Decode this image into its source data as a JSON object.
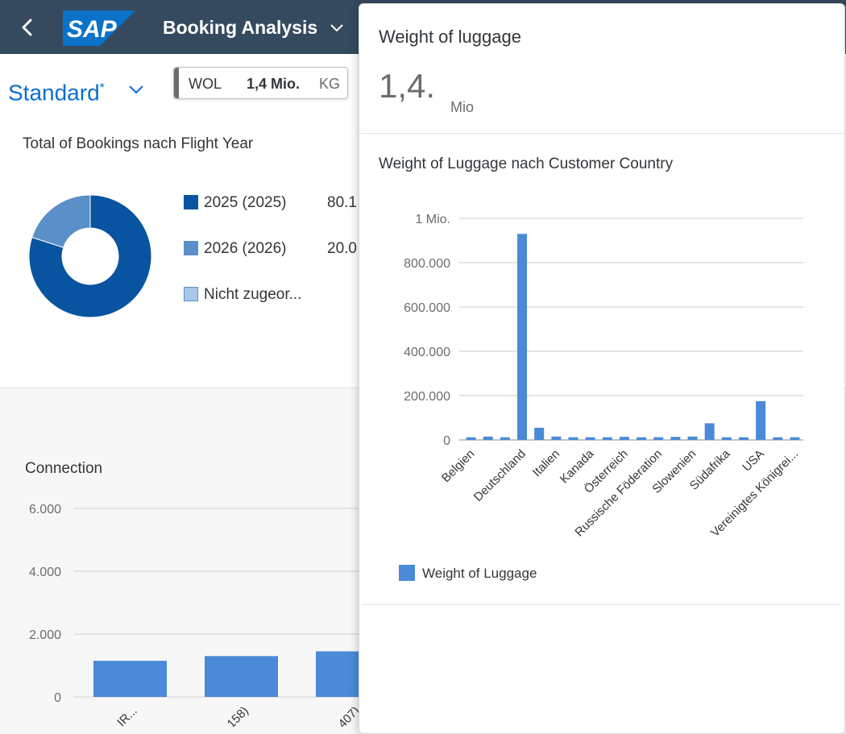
{
  "shell": {
    "app_title": "Booking Analysis",
    "logo_text": "SAP",
    "back_icon": "chevron-left-icon",
    "title_menu_icon": "chevron-down-icon",
    "color": "#354a5f"
  },
  "header": {
    "variant_label": "Standard",
    "variant_modified": "*",
    "kpi": {
      "label": "WOL",
      "value": "1,4 Mio.",
      "unit": "KG"
    },
    "donut_card": {
      "title": "Total of Bookings nach Flight Year",
      "legend": [
        {
          "label": "2025 (2025)",
          "value": "80.1",
          "color": "#0854a0",
          "share": 0.8
        },
        {
          "label": "2026 (2026)",
          "value": "20.0",
          "color": "#5b8fc7",
          "share": 0.2
        },
        {
          "label": "Nicht zugeor...",
          "value": "",
          "color": "#a9c6e8",
          "share": 0
        }
      ]
    }
  },
  "lower": {
    "title": "Connection",
    "axis_ticks": [
      "6.000",
      "4.000",
      "2.000",
      "0"
    ],
    "bars": [
      {
        "label": "...IR...",
        "value": 1150
      },
      {
        "label": "...158)",
        "value": 1300
      },
      {
        "label": "...407)",
        "value": 1450
      }
    ]
  },
  "popover": {
    "title": "Weight of luggage",
    "value": "1,4.",
    "scale": "Mio",
    "chart_title": "Weight of Luggage nach Customer Country"
  },
  "chart_data": {
    "type": "bar",
    "title": "Weight of Luggage nach Customer Country",
    "xlabel": "",
    "ylabel": "",
    "ylim": [
      0,
      1000000
    ],
    "y_ticks": [
      {
        "value": 0,
        "label": "0"
      },
      {
        "value": 200000,
        "label": "200.000"
      },
      {
        "value": 400000,
        "label": "400.000"
      },
      {
        "value": 600000,
        "label": "600.000"
      },
      {
        "value": 800000,
        "label": "800.000"
      },
      {
        "value": 1000000,
        "label": "1 Mio."
      }
    ],
    "categories": [
      "Belgien",
      "",
      "",
      "Deutschland",
      "",
      "Italien",
      "",
      "Kanada",
      "",
      "Österreich",
      "",
      "Russische Föderation",
      "",
      "Slowenien",
      "",
      "Südafrika",
      "",
      "USA",
      "",
      "Vereinigtes Königrei..."
    ],
    "series": [
      {
        "name": "Weight of Luggage",
        "color": "#4a8ad8",
        "values": [
          12000,
          15000,
          12000,
          930000,
          55000,
          15000,
          12000,
          12000,
          12000,
          14000,
          12000,
          12000,
          14000,
          15000,
          75000,
          12000,
          12000,
          175000,
          12000,
          12000
        ]
      }
    ],
    "legend": "bottom-left",
    "grid": true
  }
}
